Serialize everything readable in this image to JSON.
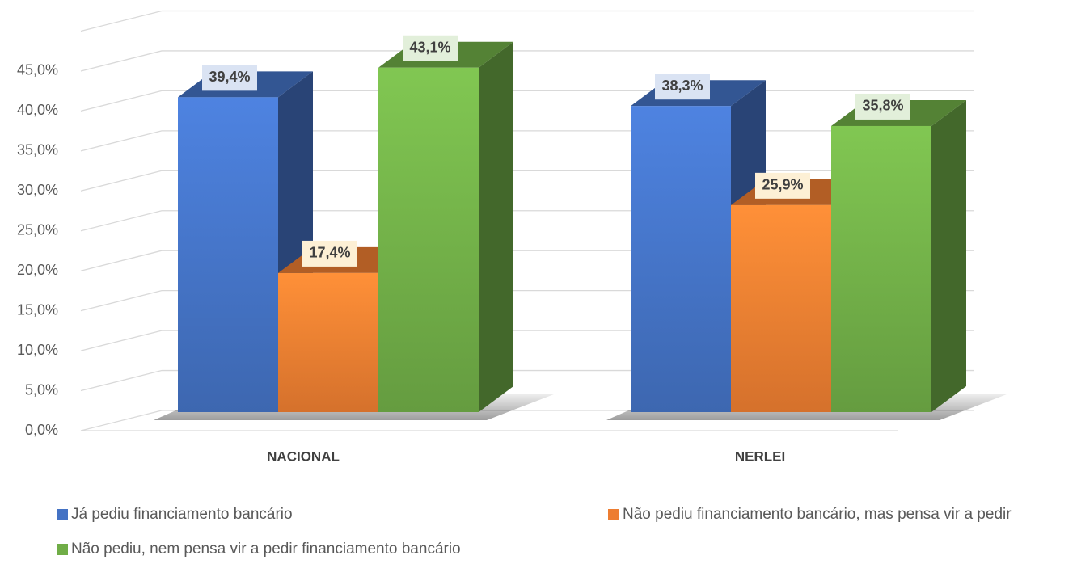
{
  "chart_data": {
    "type": "bar3d",
    "categories": [
      "NACIONAL",
      "NERLEI"
    ],
    "series": [
      {
        "name": "Já pediu financiamento bancário",
        "color": "#4472c4",
        "values": [
          39.4,
          38.3
        ],
        "value_labels": [
          "39,4%",
          "38,3%"
        ]
      },
      {
        "name": "Não pediu financiamento bancário, mas pensa vir a pedir",
        "color": "#ed7d31",
        "values": [
          17.4,
          25.9
        ],
        "value_labels": [
          "17,4%",
          "25,9%"
        ]
      },
      {
        "name": "Não pediu, nem pensa vir a pedir financiamento bancário",
        "color": "#70ad47",
        "values": [
          43.1,
          35.8
        ],
        "value_labels": [
          "43,1%",
          "35,8%"
        ]
      }
    ],
    "ylim": [
      0,
      50
    ],
    "yticks": [
      {
        "value": 0,
        "label": "0,0%"
      },
      {
        "value": 5,
        "label": "5,0%"
      },
      {
        "value": 10,
        "label": "10,0%"
      },
      {
        "value": 15,
        "label": "15,0%"
      },
      {
        "value": 20,
        "label": "20,0%"
      },
      {
        "value": 25,
        "label": "25,0%"
      },
      {
        "value": 30,
        "label": "30,0%"
      },
      {
        "value": 35,
        "label": "35,0%"
      },
      {
        "value": 40,
        "label": "40,0%"
      },
      {
        "value": 45,
        "label": "45,0%"
      }
    ],
    "grid": true,
    "legend": "bottom"
  }
}
